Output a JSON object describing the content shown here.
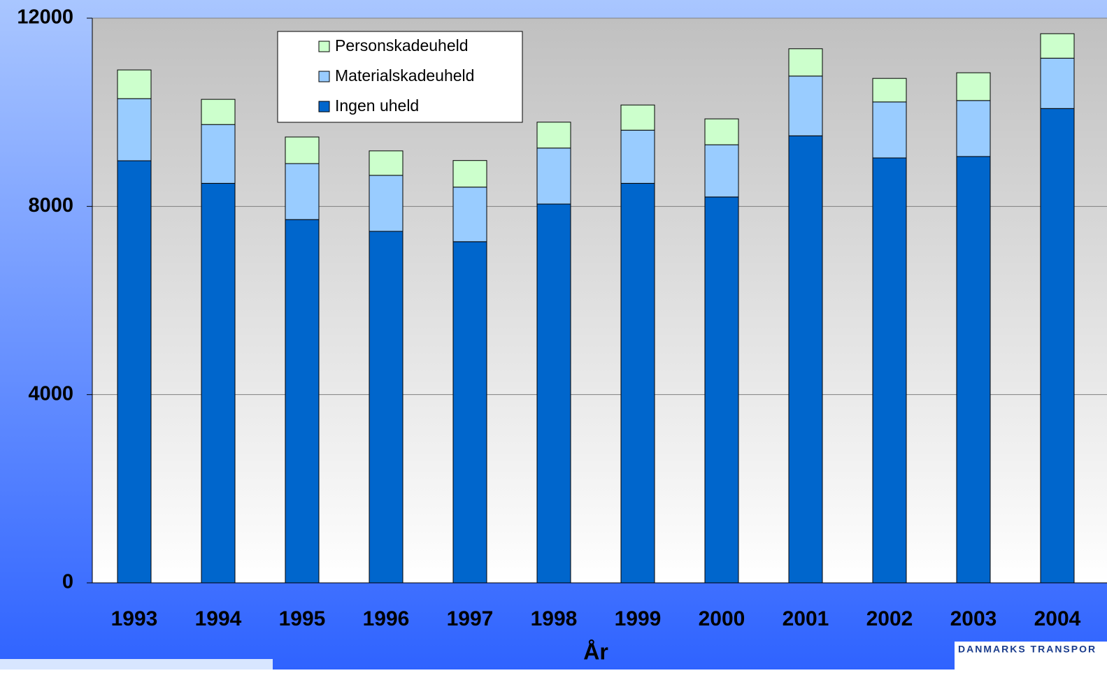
{
  "chart_data": {
    "type": "stacked_bar",
    "xlabel": "År",
    "categories": [
      "1993",
      "1994",
      "1995",
      "1996",
      "1997",
      "1998",
      "1999",
      "2000",
      "2001",
      "2002",
      "2003",
      "2004"
    ],
    "series": [
      {
        "name": "Ingen uheld",
        "color": "#0066cc",
        "values": [
          8970,
          8490,
          7720,
          7470,
          7250,
          8050,
          8490,
          8200,
          9500,
          9030,
          9060,
          10080
        ]
      },
      {
        "name": "Materialskadeuheld",
        "color": "#99ccff",
        "values": [
          1320,
          1250,
          1190,
          1190,
          1160,
          1190,
          1130,
          1110,
          1270,
          1190,
          1190,
          1070
        ]
      },
      {
        "name": "Personskadeuheld",
        "color": "#ccffcc",
        "values": [
          610,
          535,
          565,
          520,
          565,
          550,
          535,
          550,
          580,
          500,
          590,
          520
        ]
      }
    ],
    "ylim": [
      0,
      12000
    ],
    "yticks": [
      0,
      4000,
      8000,
      12000
    ],
    "grid": true,
    "logo": "DANMARKS TRANSPOR"
  }
}
